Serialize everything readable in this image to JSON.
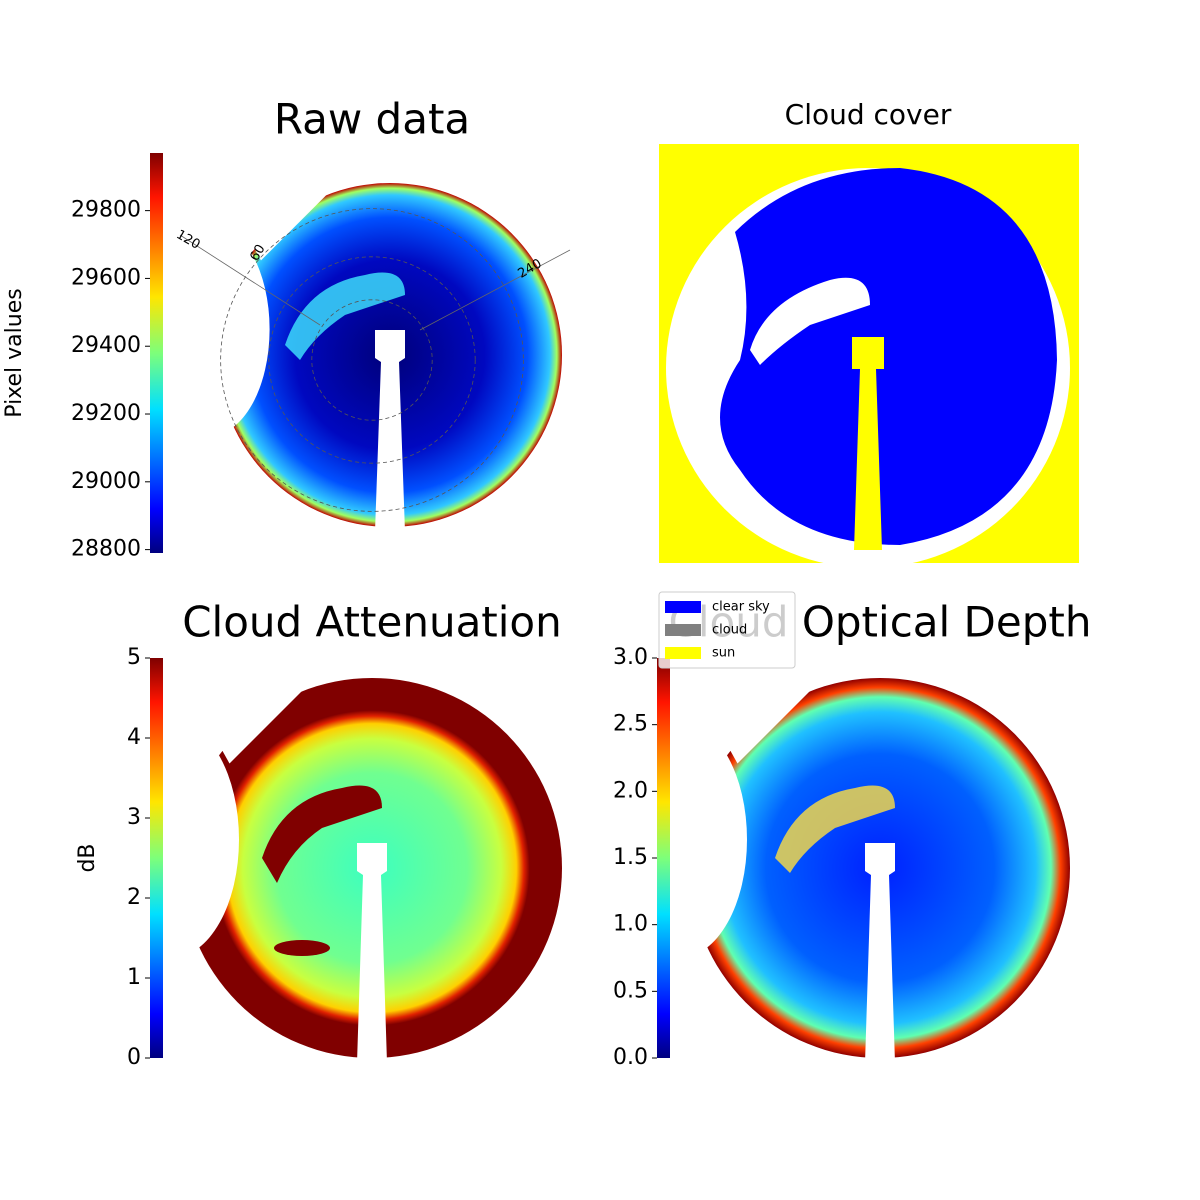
{
  "chart_data": [
    {
      "type": "image",
      "title": "Raw data",
      "colormap": "jet",
      "style": "raw",
      "colorbar_label": "Pixel values",
      "ylim": [
        28790,
        29970
      ],
      "yticks": [
        28800,
        29000,
        29200,
        29400,
        29600,
        29800
      ],
      "annotations": [
        "120",
        "60",
        "240"
      ]
    },
    {
      "type": "classification",
      "title": "Cloud cover",
      "series": [
        {
          "name": "clear sky",
          "color": "#0000ff"
        },
        {
          "name": "cloud",
          "color": "#808080"
        },
        {
          "name": "sun",
          "color": "#ffff00"
        }
      ]
    },
    {
      "type": "image",
      "title": "Cloud Attenuation",
      "colormap": "jet",
      "style": "attenuation",
      "colorbar_label": "dB",
      "ylim": [
        0,
        5
      ],
      "yticks": [
        0,
        1,
        2,
        3,
        4,
        5
      ]
    },
    {
      "type": "image",
      "title": "Cloud Optical Depth",
      "colormap": "jet",
      "style": "depth",
      "ylim": [
        0,
        3
      ],
      "yticks": [
        {
          "value": 0,
          "label": "0.0"
        },
        {
          "value": 0.5,
          "label": "0.5"
        },
        {
          "value": 1,
          "label": "1.0"
        },
        {
          "value": 1.5,
          "label": "1.5"
        },
        {
          "value": 2,
          "label": "2.0"
        },
        {
          "value": 2.5,
          "label": "2.5"
        },
        {
          "value": 3,
          "label": "3.0"
        }
      ]
    }
  ]
}
